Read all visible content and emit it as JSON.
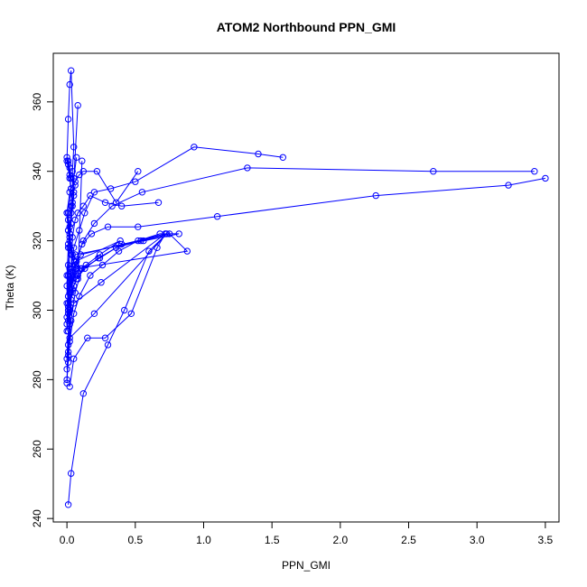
{
  "chart_data": {
    "type": "line",
    "title": "ATOM2 Northbound PPN_GMI",
    "xlabel": "PPN_GMI",
    "ylabel": "Theta (K)",
    "xlim": [
      -0.1,
      3.6
    ],
    "ylim": [
      239,
      374
    ],
    "xticks": [
      0.0,
      0.5,
      1.0,
      1.5,
      2.0,
      2.5,
      3.0,
      3.5
    ],
    "xtick_labels": [
      "0.0",
      "0.5",
      "1.0",
      "1.5",
      "2.0",
      "2.5",
      "3.0",
      "3.5"
    ],
    "yticks": [
      240,
      260,
      280,
      300,
      320,
      340,
      360
    ],
    "ytick_labels": [
      "240",
      "260",
      "280",
      "300",
      "320",
      "340",
      "360"
    ],
    "grid": false,
    "legend": "none",
    "color": "#0000ff",
    "marker": "open-circle",
    "series": [
      {
        "x": [
          0.01,
          0.03,
          0.12,
          0.3,
          0.42,
          0.6,
          0.73,
          0.2,
          0.02,
          0.0,
          0.01,
          0.02,
          0.01,
          0.0,
          0.01,
          0.03,
          0.05,
          0.04,
          0.05,
          0.03,
          0.02,
          0.01,
          0.0,
          0.02,
          0.04,
          0.08
        ],
        "y": [
          244,
          253,
          276,
          290,
          300,
          317,
          322,
          299,
          292,
          280,
          290,
          296,
          302,
          310,
          318,
          325,
          333,
          340,
          347,
          369,
          365,
          355,
          343,
          338,
          330,
          359
        ]
      },
      {
        "x": [
          0.02,
          0.05,
          0.15,
          0.28,
          0.47,
          0.66,
          0.72,
          0.25,
          0.05,
          0.01,
          0.02,
          0.04,
          0.1,
          0.02,
          0.01,
          0.0,
          0.02,
          0.03,
          0.06,
          0.09,
          0.12,
          0.22,
          0.36,
          0.52
        ],
        "y": [
          278,
          286,
          292,
          292,
          299,
          318,
          322,
          308,
          302,
          297,
          300,
          309,
          312,
          318,
          323,
          328,
          334,
          335,
          337,
          339,
          340,
          340,
          331,
          340
        ]
      },
      {
        "x": [
          0.0,
          0.01,
          0.03,
          0.06,
          0.11,
          0.24,
          0.4,
          0.56,
          0.75,
          0.88,
          0.07,
          0.02,
          0.01,
          0.03,
          0.04,
          0.06,
          0.08,
          0.12,
          0.17,
          0.28,
          0.4,
          0.67
        ],
        "y": [
          283,
          288,
          297,
          305,
          312,
          315,
          319,
          320,
          322,
          317,
          312,
          306,
          300,
          310,
          321,
          326,
          328,
          330,
          333,
          331,
          330,
          331
        ]
      },
      {
        "x": [
          0.01,
          0.02,
          0.05,
          0.09,
          0.17,
          0.26,
          0.38,
          0.52,
          0.68,
          0.82,
          0.06,
          0.03,
          0.02,
          0.0,
          0.02,
          0.05,
          0.09,
          0.13,
          0.2,
          0.32,
          0.5,
          0.93,
          1.4,
          1.58
        ],
        "y": [
          285,
          291,
          299,
          304,
          310,
          313,
          317,
          320,
          322,
          322,
          316,
          311,
          306,
          302,
          308,
          318,
          323,
          328,
          334,
          335,
          337,
          347,
          345,
          344
        ]
      },
      {
        "x": [
          0.0,
          0.01,
          0.02,
          0.04,
          0.07,
          0.13,
          0.23,
          0.36,
          0.54,
          0.72,
          0.1,
          0.04,
          0.02,
          0.01,
          0.03,
          0.06,
          0.12,
          0.2,
          0.33,
          0.55,
          1.32,
          2.68,
          3.42
        ],
        "y": [
          286,
          294,
          300,
          306,
          309,
          312,
          315,
          318,
          320,
          322,
          316,
          310,
          305,
          300,
          305,
          313,
          320,
          325,
          330,
          334,
          341,
          340,
          340
        ]
      },
      {
        "x": [
          0.0,
          0.01,
          0.02,
          0.03,
          0.05,
          0.08,
          0.14,
          0.24,
          0.39,
          0.06,
          0.03,
          0.01,
          0.02,
          0.04,
          0.07,
          0.11,
          0.18,
          0.3,
          0.52,
          1.1,
          2.26,
          3.23,
          3.5
        ],
        "y": [
          279,
          287,
          296,
          303,
          307,
          310,
          313,
          316,
          320,
          314,
          309,
          304,
          301,
          308,
          314,
          319,
          322,
          324,
          324,
          327,
          333,
          336,
          338
        ]
      },
      {
        "x": [
          0.0,
          0.01,
          0.02,
          0.01,
          0.02,
          0.03,
          0.04,
          0.05,
          0.06,
          0.03,
          0.02,
          0.01,
          0.0,
          0.01,
          0.02,
          0.03,
          0.01,
          0.02,
          0.04,
          0.06,
          0.08,
          0.11
        ],
        "y": [
          298,
          304,
          312,
          319,
          324,
          328,
          331,
          334,
          336,
          338,
          341,
          343,
          344,
          342,
          339,
          335,
          328,
          322,
          316,
          312,
          309,
          343
        ]
      },
      {
        "x": [
          0.0,
          0.01,
          0.0,
          0.01,
          0.02,
          0.01,
          0.0,
          0.01,
          0.02,
          0.03,
          0.04,
          0.02,
          0.01,
          0.0,
          0.01,
          0.02,
          0.03,
          0.05,
          0.07
        ],
        "y": [
          296,
          301,
          307,
          313,
          318,
          323,
          328,
          326,
          321,
          316,
          311,
          305,
          299,
          294,
          310,
          320,
          330,
          338,
          344
        ]
      }
    ]
  }
}
